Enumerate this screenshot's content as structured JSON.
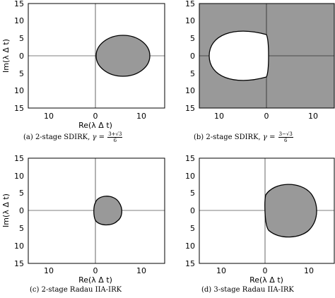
{
  "panels": [
    {
      "id": "a",
      "ylabel": "Im(λ Δ t)",
      "xlabel": "Re(λ Δ t)",
      "y_ticks": [
        "15",
        "10",
        "5",
        "0",
        "5",
        "10",
        "15"
      ],
      "x_ticks": [
        "10",
        "0",
        "10"
      ],
      "shading": "inside",
      "caption": {
        "prefix": "(a) 2-stage SDIRK, ",
        "gamma": "γ",
        "eq": " = ",
        "num": "3+√3",
        "den": "6"
      }
    },
    {
      "id": "b",
      "ylabel": "",
      "xlabel": "",
      "y_ticks": [
        "15",
        "10",
        "5",
        "0",
        "5",
        "10",
        "15"
      ],
      "x_ticks": [
        "10",
        "0",
        "10"
      ],
      "shading": "outside",
      "caption": {
        "prefix": "(b) 2-stage SDIRK, ",
        "gamma": "γ",
        "eq": " = ",
        "num": "3−√3",
        "den": "6"
      }
    },
    {
      "id": "c",
      "ylabel": "Im(λ Δ t)",
      "xlabel": "Re(λ Δ t)",
      "y_ticks": [
        "15",
        "10",
        "5",
        "0",
        "5",
        "10",
        "15"
      ],
      "x_ticks": [
        "10",
        "0",
        "10"
      ],
      "shading": "inside",
      "caption": {
        "prefix": "(c) 2-stage Radau IIA-IRK"
      }
    },
    {
      "id": "d",
      "ylabel": "",
      "xlabel": "Re(λ Δ t)",
      "y_ticks": [
        "15",
        "10",
        "5",
        "0",
        "5",
        "10",
        "15"
      ],
      "x_ticks": [
        "10",
        "0",
        "10"
      ],
      "shading": "inside",
      "caption": {
        "prefix": "(d) 3-stage Radau IIA-IRK"
      }
    }
  ],
  "colors": {
    "fill": "#999999",
    "stroke": "#000000",
    "axis": "#000000",
    "frame": "#000000",
    "background": "#ffffff"
  }
}
